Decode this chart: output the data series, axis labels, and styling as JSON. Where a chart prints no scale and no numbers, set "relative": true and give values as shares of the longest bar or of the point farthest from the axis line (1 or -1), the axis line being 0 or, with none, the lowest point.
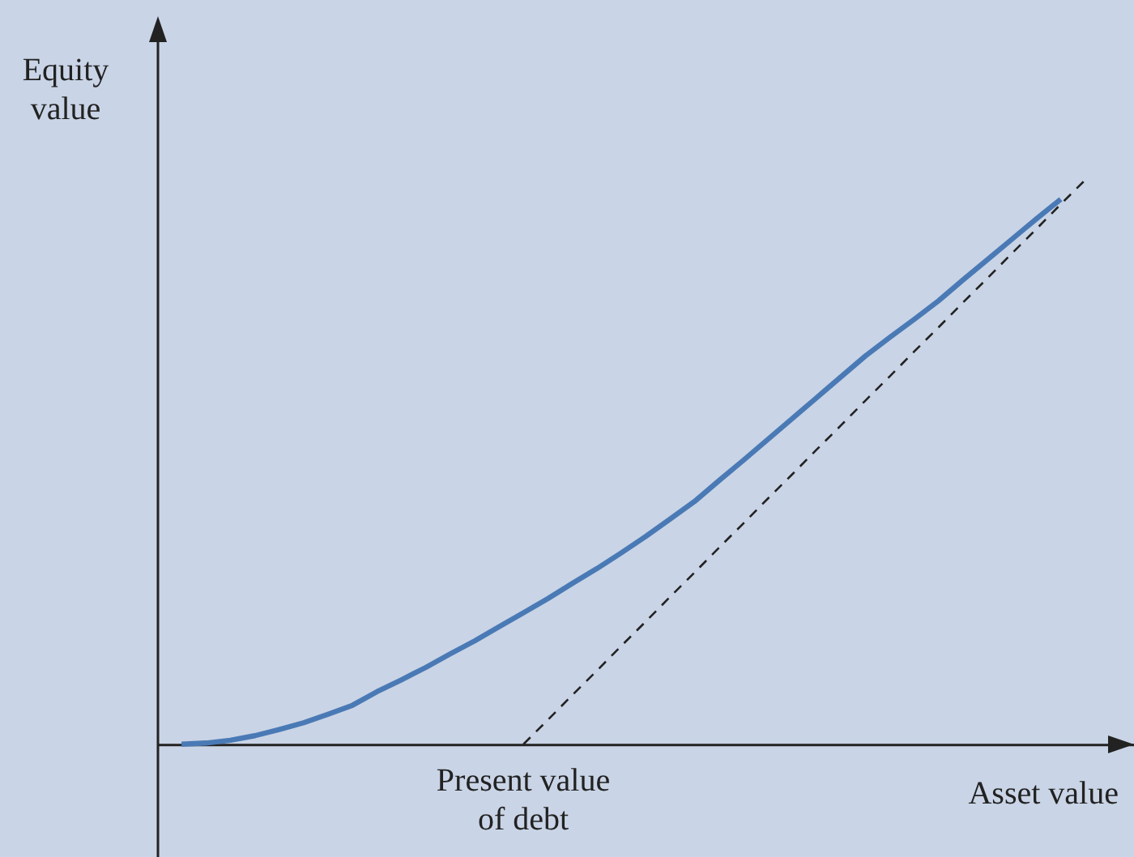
{
  "chart_data": {
    "type": "line",
    "relative": true,
    "xlabel": "Asset value",
    "ylabel": "Equity\nvalue",
    "annotations": [
      "Present value\nof debt"
    ],
    "marker": "none",
    "categories": [
      null,
      null,
      null,
      null,
      null,
      null,
      null,
      null,
      null,
      null,
      null,
      null,
      null,
      null,
      null,
      null,
      null,
      null,
      null,
      null,
      null,
      null,
      null,
      null,
      null,
      null,
      null,
      null,
      null,
      null,
      null,
      null,
      null,
      null,
      null,
      null,
      null,
      null,
      null,
      null,
      null
    ],
    "series": [
      {
        "color": "#4a7ab5",
        "line_style": "solid",
        "values": [
          null,
          0,
          0.002,
          0.007,
          0.015,
          0.026,
          0.038,
          0.053,
          0.069,
          0.093,
          0.114,
          0.136,
          0.16,
          0.183,
          0.208,
          0.233,
          0.258,
          0.285,
          0.311,
          0.339,
          0.368,
          0.399,
          0.43,
          0.467,
          0.503,
          0.54,
          0.577,
          0.614,
          0.651,
          0.688,
          0.721,
          0.753,
          0.786,
          0.823,
          0.859,
          0.895,
          0.931,
          0.966,
          null,
          null,
          null
        ]
      },
      {
        "color": "#222222",
        "line_style": "dashed",
        "values": [
          null,
          null,
          null,
          null,
          null,
          null,
          null,
          null,
          null,
          null,
          null,
          null,
          null,
          null,
          null,
          0,
          0.043,
          0.087,
          0.13,
          0.174,
          0.217,
          0.261,
          0.304,
          0.348,
          0.391,
          0.435,
          0.478,
          0.522,
          0.565,
          0.609,
          0.652,
          0.696,
          0.739,
          0.783,
          0.826,
          0.87,
          0.913,
          0.957,
          1,
          null,
          null
        ]
      }
    ]
  }
}
